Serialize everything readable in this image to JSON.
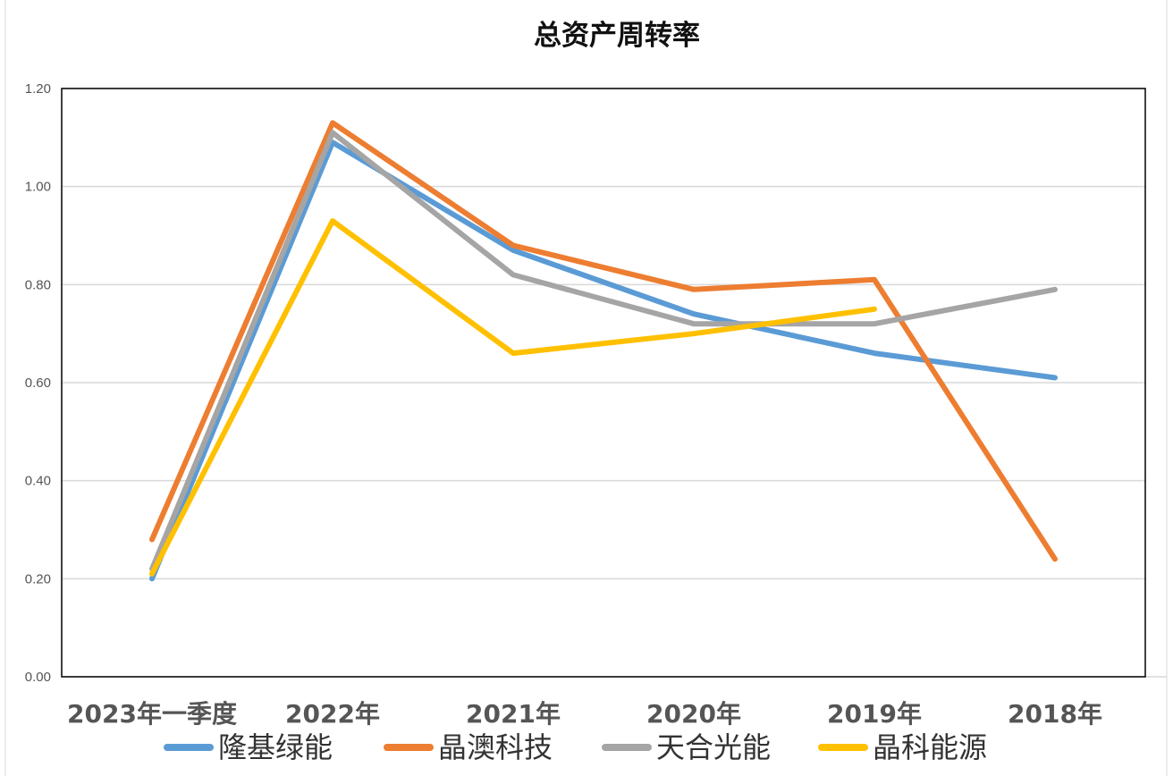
{
  "chart_data": {
    "type": "line",
    "title": "总资产周转率",
    "categories": [
      "2023年一季度",
      "2022年",
      "2021年",
      "2020年",
      "2019年",
      "2018年"
    ],
    "ylim": [
      0,
      1.2
    ],
    "yticks": [
      "0.00",
      "0.20",
      "0.40",
      "0.60",
      "0.80",
      "1.00",
      "1.20"
    ],
    "grid": true,
    "legend_position": "bottom",
    "series": [
      {
        "name": "隆基绿能",
        "color": "#5B9BD5",
        "values": [
          0.2,
          1.09,
          0.87,
          0.74,
          0.66,
          0.61
        ]
      },
      {
        "name": "晶澳科技",
        "color": "#ED7D31",
        "values": [
          0.28,
          1.13,
          0.88,
          0.79,
          0.81,
          0.24
        ]
      },
      {
        "name": "天合光能",
        "color": "#A5A5A5",
        "values": [
          0.22,
          1.11,
          0.82,
          0.72,
          0.72,
          0.79
        ]
      },
      {
        "name": "晶科能源",
        "color": "#FFC000",
        "values": [
          0.21,
          0.93,
          0.66,
          0.7,
          0.75,
          null
        ]
      }
    ]
  }
}
